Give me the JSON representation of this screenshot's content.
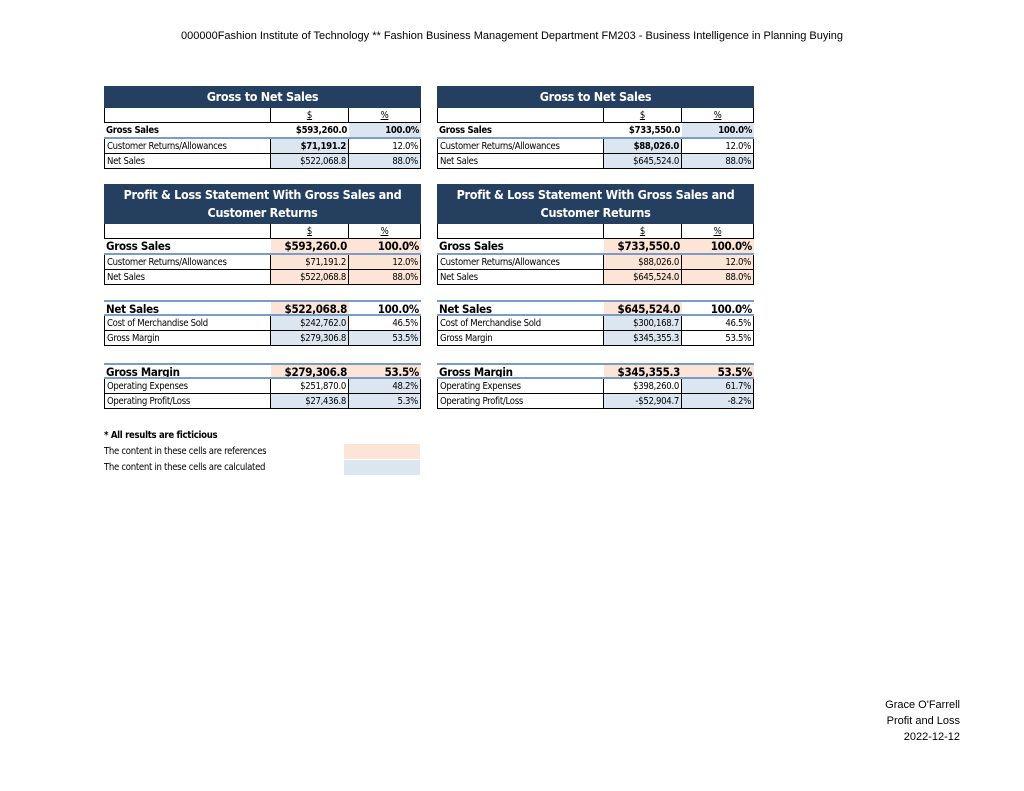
{
  "header": "000000Fashion Institute of Technology ** Fashion Business Management Department FM203 - Business Intelligence in Planning Buying",
  "colors": {
    "title_bg": "#243f60",
    "reference_fill": "#fce4d6",
    "calculated_fill": "#dce6f1"
  },
  "columns": {
    "dollar": "$",
    "percent": "%"
  },
  "panels": [
    {
      "tables": [
        {
          "title": "Gross to Net Sales",
          "header": true,
          "rows": [
            {
              "label": "Gross Sales",
              "value": "$593,260.0",
              "pct": "100.0%",
              "vf": "",
              "pf": "calc"
            },
            {
              "label": "Customer Returns/Allowances",
              "value": "$71,191.2",
              "pct": "12.0%",
              "vf": "calc",
              "pf": "",
              "vbold": true
            },
            {
              "label": "Net Sales",
              "value": "$522,068.8",
              "pct": "88.0%",
              "vf": "calc",
              "pf": "calc"
            }
          ]
        },
        {
          "title": "Profit & Loss Statement With Gross Sales and Customer Returns",
          "header": true,
          "rows": [
            {
              "label": "Gross Sales",
              "value": "$593,260.0",
              "pct": "100.0%",
              "vf": "ref",
              "pf": "ref"
            },
            {
              "label": "Customer Returns/Allowances",
              "value": "$71,191.2",
              "pct": "12.0%",
              "vf": "ref",
              "pf": "ref"
            },
            {
              "label": "Net Sales",
              "value": "$522,068.8",
              "pct": "88.0%",
              "vf": "ref",
              "pf": "ref"
            }
          ]
        },
        {
          "title": "",
          "header": false,
          "rows": [
            {
              "label": "Net Sales",
              "value": "$522,068.8",
              "pct": "100.0%",
              "vf": "ref",
              "pf": ""
            },
            {
              "label": "Cost of Merchandise Sold",
              "value": "$242,762.0",
              "pct": "46.5%",
              "vf": "calc",
              "pf": ""
            },
            {
              "label": "Gross Margin",
              "value": "$279,306.8",
              "pct": "53.5%",
              "vf": "calc",
              "pf": "calc"
            }
          ]
        },
        {
          "title": "",
          "header": false,
          "rows": [
            {
              "label": "Gross Margin",
              "value": "$279,306.8",
              "pct": "53.5%",
              "vf": "ref",
              "pf": "ref"
            },
            {
              "label": "Operating Expenses",
              "value": "$251,870.0",
              "pct": "48.2%",
              "vf": "",
              "pf": "calc"
            },
            {
              "label": "Operating Profit/Loss",
              "value": "$27,436.8",
              "pct": "5.3%",
              "vf": "calc",
              "pf": "calc"
            }
          ]
        }
      ]
    },
    {
      "tables": [
        {
          "title": "Gross to Net Sales",
          "header": true,
          "rows": [
            {
              "label": "Gross Sales",
              "value": "$733,550.0",
              "pct": "100.0%",
              "vf": "",
              "pf": "calc"
            },
            {
              "label": "Customer Returns/Allowances",
              "value": "$88,026.0",
              "pct": "12.0%",
              "vf": "calc",
              "pf": "",
              "vbold": true
            },
            {
              "label": "Net Sales",
              "value": "$645,524.0",
              "pct": "88.0%",
              "vf": "calc",
              "pf": "calc"
            }
          ]
        },
        {
          "title": "Profit & Loss Statement With Gross Sales and Customer Returns",
          "header": true,
          "rows": [
            {
              "label": "Gross Sales",
              "value": "$733,550.0",
              "pct": "100.0%",
              "vf": "ref",
              "pf": "ref"
            },
            {
              "label": "Customer Returns/Allowances",
              "value": "$88,026.0",
              "pct": "12.0%",
              "vf": "ref",
              "pf": "ref"
            },
            {
              "label": "Net Sales",
              "value": "$645,524.0",
              "pct": "88.0%",
              "vf": "ref",
              "pf": "ref"
            }
          ]
        },
        {
          "title": "",
          "header": false,
          "rows": [
            {
              "label": "Net Sales",
              "value": "$645,524.0",
              "pct": "100.0%",
              "vf": "ref",
              "pf": ""
            },
            {
              "label": "Cost of Merchandise Sold",
              "value": "$300,168.7",
              "pct": "46.5%",
              "vf": "calc",
              "pf": ""
            },
            {
              "label": "Gross Margin",
              "value": "$345,355.3",
              "pct": "53.5%",
              "vf": "calc",
              "pf": ""
            }
          ]
        },
        {
          "title": "",
          "header": false,
          "rows": [
            {
              "label": "Gross Margin",
              "value": "$345,355.3",
              "pct": "53.5%",
              "vf": "ref",
              "pf": "ref"
            },
            {
              "label": "Operating Expenses",
              "value": "$398,260.0",
              "pct": "61.7%",
              "vf": "",
              "pf": "calc"
            },
            {
              "label": "Operating Profit/Loss",
              "value": "-$52,904.7",
              "pct": "-8.2%",
              "vf": "calc",
              "pf": "calc"
            }
          ]
        }
      ]
    }
  ],
  "notes": {
    "disclaimer": "* All results are ficticious",
    "reference_legend": "The content in these cells are references",
    "calculated_legend": "The content in these cells are calculated"
  },
  "footer": {
    "author": "Grace O'Farrell",
    "doc_title": "Profit and Loss",
    "date": "2022-12-12"
  }
}
